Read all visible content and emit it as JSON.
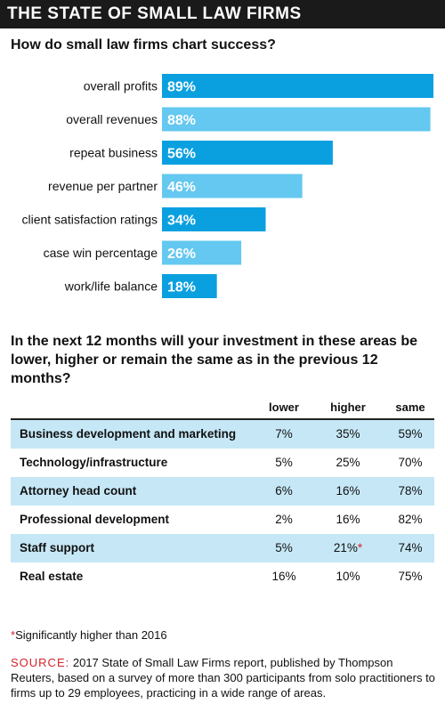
{
  "banner": {
    "title": "THE STATE OF SMALL LAW FIRMS"
  },
  "chart_data": {
    "type": "bar",
    "title": "How do small law firms chart success?",
    "orientation": "horizontal",
    "categories": [
      "overall profits",
      "overall revenues",
      "repeat business",
      "revenue per partner",
      "client satisfaction ratings",
      "case win percentage",
      "work/life balance"
    ],
    "values": [
      89,
      88,
      56,
      46,
      34,
      26,
      18
    ],
    "value_labels": [
      "89%",
      "88%",
      "56%",
      "46%",
      "34%",
      "26%",
      "18%"
    ],
    "unit": "%",
    "xlim": [
      0,
      89
    ],
    "bar_colors": [
      "#0aa0e0",
      "#64c8f0"
    ]
  },
  "investment": {
    "question": "In the next 12 months will your investment in these areas be lower, higher or remain the same as in the previous 12 months?",
    "headers": {
      "lower": "lower",
      "higher": "higher",
      "same": "same"
    },
    "rows": [
      {
        "area": "Business development and marketing",
        "lower": "7%",
        "higher": "35%",
        "higher_mark": "",
        "same": "59%"
      },
      {
        "area": "Technology/infrastructure",
        "lower": "5%",
        "higher": "25%",
        "higher_mark": "",
        "same": "70%"
      },
      {
        "area": "Attorney head count",
        "lower": "6%",
        "higher": "16%",
        "higher_mark": "",
        "same": "78%"
      },
      {
        "area": "Professional development",
        "lower": "2%",
        "higher": "16%",
        "higher_mark": "",
        "same": "82%"
      },
      {
        "area": "Staff support",
        "lower": "5%",
        "higher": "21%",
        "higher_mark": "*",
        "same": "74%"
      },
      {
        "area": "Real estate",
        "lower": "16%",
        "higher": "10%",
        "higher_mark": "",
        "same": "75%"
      }
    ]
  },
  "footnote": {
    "mark": "*",
    "text": "Significantly higher than 2016"
  },
  "source": {
    "label": "SOURCE:",
    "text": "2017 State of Small Law Firms report, published by Thompson Reuters, based on a survey of more than 300 participants from solo practitioners to firms up to 29 employees, practicing in a wide range of areas."
  },
  "colors": {
    "accent_red": "#d2232a",
    "row_shade": "#c6e7f6",
    "banner": "#1a1a1a"
  }
}
